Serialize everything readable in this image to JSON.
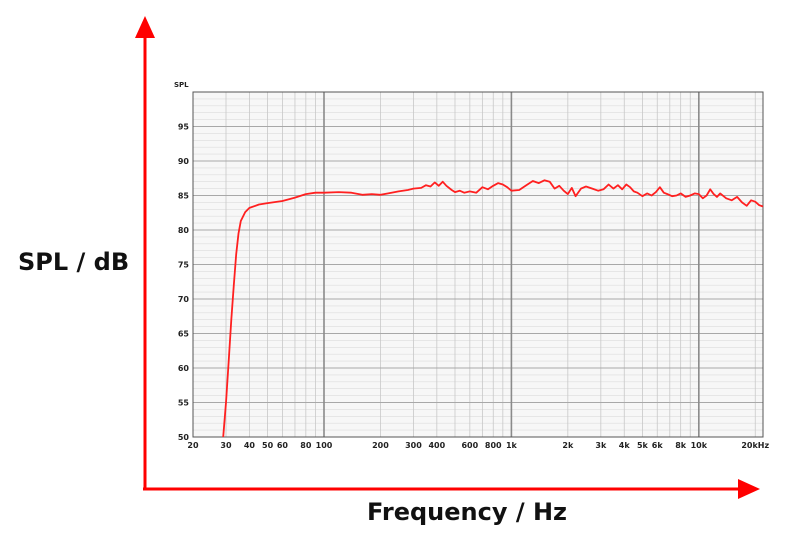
{
  "outer_axes": {
    "xlabel": "Frequency / Hz",
    "ylabel": "SPL / dB",
    "arrow_color": "#ff0000"
  },
  "chart_data": {
    "type": "line",
    "xscale": "log",
    "xlim": [
      20,
      22000
    ],
    "ylim": [
      50,
      100
    ],
    "ylabel": "SPL",
    "grid": true,
    "x_ticks": [
      {
        "value": 20,
        "label": "20"
      },
      {
        "value": 30,
        "label": "30"
      },
      {
        "value": 40,
        "label": "40"
      },
      {
        "value": 50,
        "label": "50"
      },
      {
        "value": 60,
        "label": "60"
      },
      {
        "value": 80,
        "label": "80"
      },
      {
        "value": 100,
        "label": "100"
      },
      {
        "value": 200,
        "label": "200"
      },
      {
        "value": 300,
        "label": "300"
      },
      {
        "value": 400,
        "label": "400"
      },
      {
        "value": 600,
        "label": "600"
      },
      {
        "value": 800,
        "label": "800"
      },
      {
        "value": 1000,
        "label": "1k"
      },
      {
        "value": 2000,
        "label": "2k"
      },
      {
        "value": 3000,
        "label": "3k"
      },
      {
        "value": 4000,
        "label": "4k"
      },
      {
        "value": 5000,
        "label": "5k"
      },
      {
        "value": 6000,
        "label": "6k"
      },
      {
        "value": 8000,
        "label": "8k"
      },
      {
        "value": 10000,
        "label": "10k"
      },
      {
        "value": 20000,
        "label": "20kHz"
      }
    ],
    "y_ticks": [
      50,
      55,
      60,
      65,
      70,
      75,
      80,
      85,
      90,
      95
    ],
    "series": [
      {
        "color": "#ff2020",
        "points": [
          [
            29,
            50
          ],
          [
            30,
            55
          ],
          [
            31,
            61
          ],
          [
            32,
            67
          ],
          [
            33,
            72
          ],
          [
            34,
            76.5
          ],
          [
            35,
            79.5
          ],
          [
            36,
            81.3
          ],
          [
            38,
            82.6
          ],
          [
            40,
            83.2
          ],
          [
            45,
            83.7
          ],
          [
            50,
            83.9
          ],
          [
            60,
            84.2
          ],
          [
            70,
            84.7
          ],
          [
            80,
            85.2
          ],
          [
            90,
            85.4
          ],
          [
            100,
            85.4
          ],
          [
            120,
            85.5
          ],
          [
            140,
            85.4
          ],
          [
            160,
            85.1
          ],
          [
            180,
            85.2
          ],
          [
            200,
            85.1
          ],
          [
            220,
            85.3
          ],
          [
            250,
            85.6
          ],
          [
            280,
            85.8
          ],
          [
            300,
            86.0
          ],
          [
            330,
            86.1
          ],
          [
            350,
            86.5
          ],
          [
            370,
            86.3
          ],
          [
            390,
            86.9
          ],
          [
            410,
            86.4
          ],
          [
            430,
            87.0
          ],
          [
            450,
            86.4
          ],
          [
            480,
            85.8
          ],
          [
            500,
            85.5
          ],
          [
            530,
            85.7
          ],
          [
            560,
            85.4
          ],
          [
            600,
            85.6
          ],
          [
            650,
            85.4
          ],
          [
            700,
            86.2
          ],
          [
            750,
            85.9
          ],
          [
            800,
            86.4
          ],
          [
            850,
            86.8
          ],
          [
            900,
            86.6
          ],
          [
            950,
            86.2
          ],
          [
            1000,
            85.7
          ],
          [
            1100,
            85.8
          ],
          [
            1200,
            86.5
          ],
          [
            1300,
            87.1
          ],
          [
            1400,
            86.8
          ],
          [
            1500,
            87.2
          ],
          [
            1600,
            87.0
          ],
          [
            1700,
            86.0
          ],
          [
            1800,
            86.4
          ],
          [
            1900,
            85.7
          ],
          [
            2000,
            85.2
          ],
          [
            2100,
            86.1
          ],
          [
            2200,
            84.9
          ],
          [
            2350,
            86.0
          ],
          [
            2500,
            86.3
          ],
          [
            2700,
            86.0
          ],
          [
            2900,
            85.7
          ],
          [
            3100,
            85.9
          ],
          [
            3300,
            86.6
          ],
          [
            3500,
            86.0
          ],
          [
            3700,
            86.5
          ],
          [
            3900,
            85.9
          ],
          [
            4100,
            86.6
          ],
          [
            4300,
            86.2
          ],
          [
            4500,
            85.6
          ],
          [
            4700,
            85.4
          ],
          [
            5000,
            84.9
          ],
          [
            5300,
            85.3
          ],
          [
            5600,
            85.0
          ],
          [
            5900,
            85.5
          ],
          [
            6200,
            86.2
          ],
          [
            6500,
            85.4
          ],
          [
            6800,
            85.2
          ],
          [
            7200,
            84.9
          ],
          [
            7600,
            85.0
          ],
          [
            8000,
            85.3
          ],
          [
            8500,
            84.8
          ],
          [
            9000,
            85.0
          ],
          [
            9500,
            85.3
          ],
          [
            10000,
            85.2
          ],
          [
            10500,
            84.6
          ],
          [
            11000,
            85.0
          ],
          [
            11500,
            85.9
          ],
          [
            12000,
            85.2
          ],
          [
            12500,
            84.8
          ],
          [
            13000,
            85.3
          ],
          [
            14000,
            84.6
          ],
          [
            15000,
            84.3
          ],
          [
            16000,
            84.8
          ],
          [
            17000,
            84.0
          ],
          [
            18000,
            83.5
          ],
          [
            19000,
            84.3
          ],
          [
            20000,
            84.1
          ],
          [
            21000,
            83.6
          ],
          [
            22000,
            83.4
          ]
        ]
      }
    ]
  }
}
